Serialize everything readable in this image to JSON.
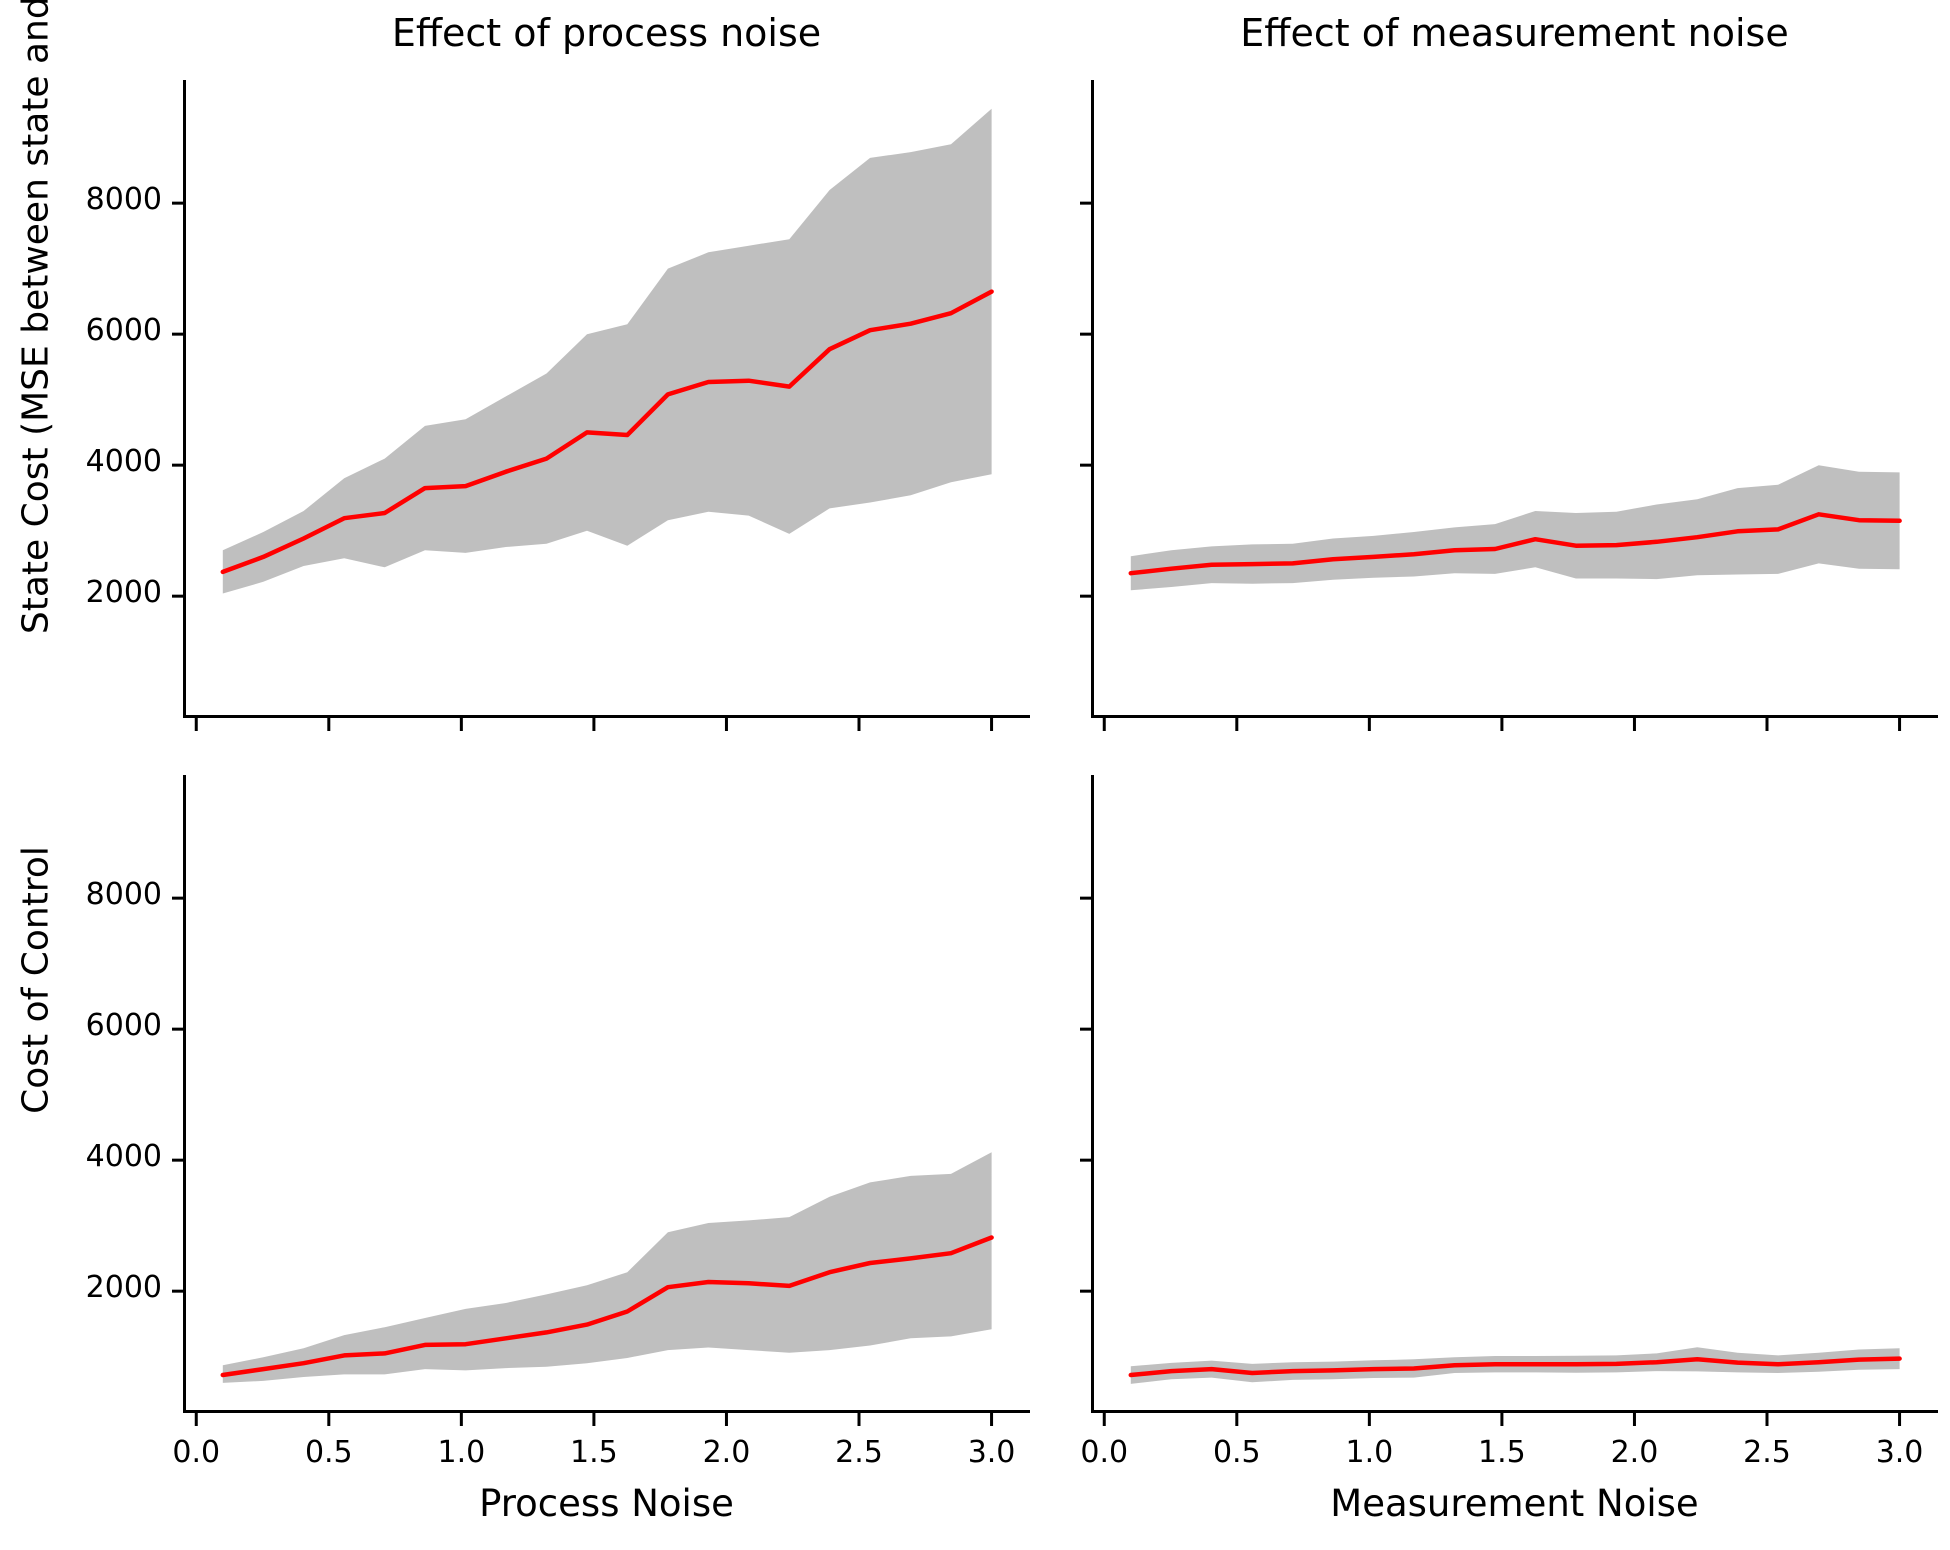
{
  "figure": {
    "title_left": "Effect of process noise",
    "title_right": "Effect of measurement noise",
    "xlabel_left": "Process Noise",
    "xlabel_right": "Measurement Noise",
    "ylabel_top": "State Cost (MSE between state and goal)",
    "ylabel_bottom": "Cost of Control"
  },
  "colors": {
    "mean_line": "#ff0000",
    "band_fill": "#bfbfbf",
    "axis": "#000000",
    "background": "#ffffff"
  },
  "chart_data": [
    {
      "type": "line",
      "name": "state-cost-vs-process-noise",
      "title": "Effect of process noise",
      "xlabel": "",
      "ylabel": "State Cost (MSE between state and goal)",
      "legend_position": "none",
      "grid": false,
      "xlim": [
        -0.05,
        3.145
      ],
      "ylim": [
        140,
        9880
      ],
      "xticks": [
        0.0,
        0.5,
        1.0,
        1.5,
        2.0,
        2.5,
        3.0
      ],
      "yticks": [
        2000,
        4000,
        6000,
        8000
      ],
      "xticklabels": [
        "0.0",
        "0.5",
        "1.0",
        "1.5",
        "2.0",
        "2.5",
        "3.0"
      ],
      "yticklabels": [
        "2000",
        "4000",
        "6000",
        "8000"
      ],
      "show_xticklabels": false,
      "show_yticklabels": true,
      "x": [
        0.1,
        0.253,
        0.405,
        0.558,
        0.711,
        0.863,
        1.016,
        1.168,
        1.321,
        1.474,
        1.626,
        1.779,
        1.932,
        2.084,
        2.237,
        2.389,
        2.542,
        2.695,
        2.847,
        3.0
      ],
      "series": [
        {
          "name": "mean",
          "values": [
            2370,
            2600,
            2880,
            3190,
            3270,
            3650,
            3680,
            3900,
            4100,
            4500,
            4460,
            5080,
            5270,
            5290,
            5200,
            5770,
            6060,
            6160,
            6320,
            6650
          ]
        },
        {
          "name": "band_upper",
          "values": [
            2700,
            2980,
            3300,
            3800,
            4100,
            4600,
            4700,
            5050,
            5400,
            6000,
            6150,
            7000,
            7250,
            7350,
            7450,
            8200,
            8690,
            8780,
            8900,
            9440
          ]
        },
        {
          "name": "band_lower",
          "values": [
            2040,
            2220,
            2460,
            2580,
            2440,
            2700,
            2660,
            2750,
            2800,
            3000,
            2770,
            3160,
            3290,
            3230,
            2950,
            3340,
            3430,
            3540,
            3740,
            3860
          ]
        }
      ]
    },
    {
      "type": "line",
      "name": "state-cost-vs-measurement-noise",
      "title": "Effect of measurement noise",
      "xlabel": "",
      "ylabel": "",
      "legend_position": "none",
      "grid": false,
      "xlim": [
        -0.05,
        3.145
      ],
      "ylim": [
        140,
        9880
      ],
      "xticks": [
        0.0,
        0.5,
        1.0,
        1.5,
        2.0,
        2.5,
        3.0
      ],
      "yticks": [
        2000,
        4000,
        6000,
        8000
      ],
      "xticklabels": [
        "0.0",
        "0.5",
        "1.0",
        "1.5",
        "2.0",
        "2.5",
        "3.0"
      ],
      "yticklabels": [
        "2000",
        "4000",
        "6000",
        "8000"
      ],
      "show_xticklabels": false,
      "show_yticklabels": false,
      "x": [
        0.1,
        0.253,
        0.405,
        0.558,
        0.711,
        0.863,
        1.016,
        1.168,
        1.321,
        1.474,
        1.626,
        1.779,
        1.932,
        2.084,
        2.237,
        2.389,
        2.542,
        2.695,
        2.847,
        3.0
      ],
      "series": [
        {
          "name": "mean",
          "values": [
            2350,
            2420,
            2480,
            2490,
            2500,
            2565,
            2600,
            2640,
            2700,
            2720,
            2870,
            2770,
            2780,
            2830,
            2900,
            2990,
            3020,
            3250,
            3160,
            3150
          ]
        },
        {
          "name": "band_upper",
          "values": [
            2610,
            2700,
            2760,
            2790,
            2800,
            2880,
            2920,
            2980,
            3050,
            3100,
            3300,
            3270,
            3290,
            3400,
            3480,
            3650,
            3700,
            4000,
            3900,
            3890
          ]
        },
        {
          "name": "band_lower",
          "values": [
            2090,
            2140,
            2200,
            2190,
            2200,
            2250,
            2280,
            2300,
            2350,
            2340,
            2440,
            2270,
            2270,
            2260,
            2320,
            2330,
            2340,
            2500,
            2420,
            2410
          ]
        }
      ]
    },
    {
      "type": "line",
      "name": "control-cost-vs-process-noise",
      "title": "",
      "xlabel": "Process Noise",
      "ylabel": "Cost of Control",
      "legend_position": "none",
      "grid": false,
      "xlim": [
        -0.05,
        3.145
      ],
      "ylim": [
        140,
        9880
      ],
      "xticks": [
        0.0,
        0.5,
        1.0,
        1.5,
        2.0,
        2.5,
        3.0
      ],
      "yticks": [
        2000,
        4000,
        6000,
        8000
      ],
      "xticklabels": [
        "0.0",
        "0.5",
        "1.0",
        "1.5",
        "2.0",
        "2.5",
        "3.0"
      ],
      "yticklabels": [
        "2000",
        "4000",
        "6000",
        "8000"
      ],
      "show_xticklabels": true,
      "show_yticklabels": true,
      "x": [
        0.1,
        0.253,
        0.405,
        0.558,
        0.711,
        0.863,
        1.016,
        1.168,
        1.321,
        1.474,
        1.626,
        1.779,
        1.932,
        2.084,
        2.237,
        2.389,
        2.542,
        2.695,
        2.847,
        3.0
      ],
      "series": [
        {
          "name": "mean",
          "values": [
            720,
            810,
            900,
            1020,
            1050,
            1180,
            1190,
            1280,
            1370,
            1490,
            1690,
            2060,
            2140,
            2120,
            2080,
            2290,
            2430,
            2500,
            2580,
            2820
          ]
        },
        {
          "name": "band_upper",
          "values": [
            870,
            990,
            1130,
            1330,
            1450,
            1590,
            1730,
            1820,
            1950,
            2090,
            2290,
            2900,
            3040,
            3080,
            3130,
            3440,
            3660,
            3760,
            3790,
            4120
          ]
        },
        {
          "name": "band_lower",
          "values": [
            600,
            630,
            690,
            730,
            730,
            810,
            790,
            825,
            845,
            900,
            980,
            1100,
            1140,
            1100,
            1060,
            1100,
            1170,
            1280,
            1310,
            1420
          ]
        }
      ]
    },
    {
      "type": "line",
      "name": "control-cost-vs-measurement-noise",
      "title": "",
      "xlabel": "Measurement Noise",
      "ylabel": "",
      "legend_position": "none",
      "grid": false,
      "xlim": [
        -0.05,
        3.145
      ],
      "ylim": [
        140,
        9880
      ],
      "xticks": [
        0.0,
        0.5,
        1.0,
        1.5,
        2.0,
        2.5,
        3.0
      ],
      "yticks": [
        2000,
        4000,
        6000,
        8000
      ],
      "xticklabels": [
        "0.0",
        "0.5",
        "1.0",
        "1.5",
        "2.0",
        "2.5",
        "3.0"
      ],
      "yticklabels": [
        "2000",
        "4000",
        "6000",
        "8000"
      ],
      "show_xticklabels": true,
      "show_yticklabels": false,
      "x": [
        0.1,
        0.253,
        0.405,
        0.558,
        0.711,
        0.863,
        1.016,
        1.168,
        1.321,
        1.474,
        1.626,
        1.779,
        1.932,
        2.084,
        2.237,
        2.389,
        2.542,
        2.695,
        2.847,
        3.0
      ],
      "series": [
        {
          "name": "mean",
          "values": [
            720,
            780,
            810,
            750,
            780,
            790,
            810,
            820,
            870,
            885,
            885,
            885,
            890,
            915,
            960,
            910,
            885,
            915,
            955,
            970
          ]
        },
        {
          "name": "band_upper",
          "values": [
            855,
            905,
            940,
            890,
            915,
            925,
            945,
            960,
            990,
            1010,
            1010,
            1015,
            1020,
            1050,
            1145,
            1060,
            1020,
            1060,
            1110,
            1130
          ]
        },
        {
          "name": "band_lower",
          "values": [
            585,
            655,
            680,
            610,
            645,
            655,
            675,
            680,
            750,
            760,
            760,
            755,
            760,
            780,
            775,
            760,
            750,
            770,
            800,
            810
          ]
        }
      ]
    }
  ]
}
